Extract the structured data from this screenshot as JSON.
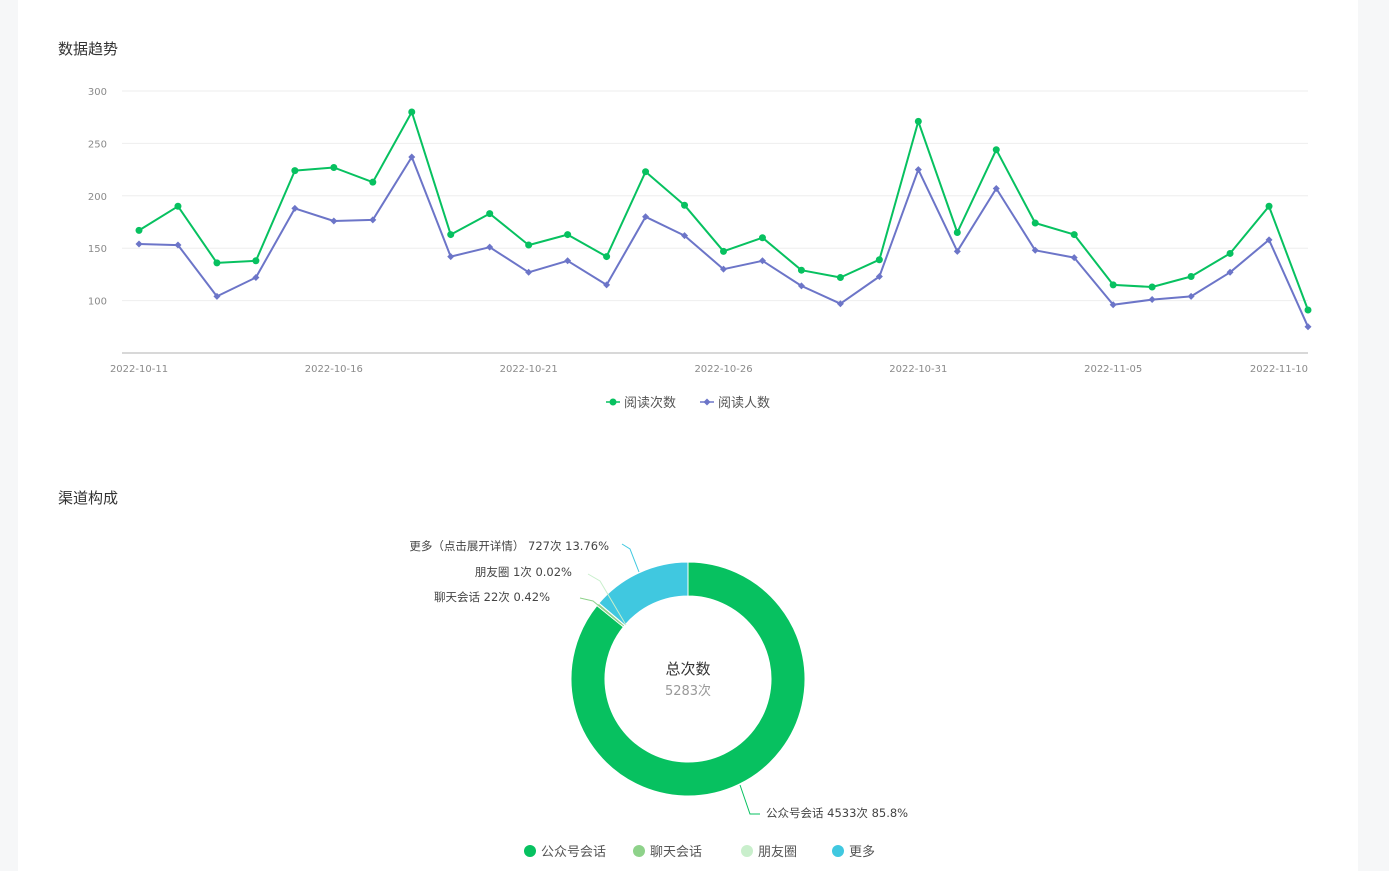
{
  "sections": {
    "trend_title": "数据趋势",
    "channel_title": "渠道构成"
  },
  "chart_data": [
    {
      "type": "line",
      "title": "数据趋势",
      "x": [
        "2022-10-11",
        "2022-10-12",
        "2022-10-13",
        "2022-10-14",
        "2022-10-15",
        "2022-10-16",
        "2022-10-17",
        "2022-10-18",
        "2022-10-19",
        "2022-10-20",
        "2022-10-21",
        "2022-10-22",
        "2022-10-23",
        "2022-10-24",
        "2022-10-25",
        "2022-10-26",
        "2022-10-27",
        "2022-10-28",
        "2022-10-29",
        "2022-10-30",
        "2022-10-31",
        "2022-11-01",
        "2022-11-02",
        "2022-11-03",
        "2022-11-04",
        "2022-11-05",
        "2022-11-06",
        "2022-11-07",
        "2022-11-08",
        "2022-11-09",
        "2022-11-10"
      ],
      "x_tick_labels": [
        "2022-10-11",
        "2022-10-16",
        "2022-10-21",
        "2022-10-26",
        "2022-10-31",
        "2022-11-05",
        "2022-11-10"
      ],
      "y_ticks": [
        100,
        150,
        200,
        250,
        300
      ],
      "ylim": [
        50,
        300
      ],
      "grid": true,
      "legend_position": "bottom",
      "series": [
        {
          "name": "阅读次数",
          "color": "#07c160",
          "marker": "circle",
          "values": [
            167,
            190,
            136,
            138,
            224,
            227,
            213,
            280,
            163,
            183,
            153,
            163,
            142,
            223,
            191,
            147,
            160,
            129,
            122,
            139,
            271,
            165,
            244,
            174,
            163,
            115,
            113,
            123,
            145,
            190,
            91
          ]
        },
        {
          "name": "阅读人数",
          "color": "#6c75c8",
          "marker": "diamond",
          "values": [
            154,
            153,
            104,
            122,
            188,
            176,
            177,
            237,
            142,
            151,
            127,
            138,
            115,
            180,
            162,
            130,
            138,
            114,
            97,
            123,
            225,
            147,
            207,
            148,
            141,
            96,
            101,
            104,
            127,
            158,
            75
          ]
        }
      ]
    },
    {
      "type": "pie",
      "title": "渠道构成",
      "center_title": "总次数",
      "center_value": "5283次",
      "legend_position": "bottom",
      "slices": [
        {
          "name": "公众号会话",
          "value": 4533,
          "percent": "85.8%",
          "color": "#07c160",
          "label": "公众号会话 4533次 85.8%"
        },
        {
          "name": "聊天会话",
          "value": 22,
          "percent": "0.42%",
          "color": "#8ed28a",
          "label": "聊天会话 22次 0.42%"
        },
        {
          "name": "朋友圈",
          "value": 1,
          "percent": "0.02%",
          "color": "#c9efcc",
          "label": "朋友圈 1次 0.02%"
        },
        {
          "name": "更多",
          "value": 727,
          "percent": "13.76%",
          "color": "#40c8e0",
          "label": "更多（点击展开详情） 727次 13.76%"
        }
      ]
    }
  ]
}
